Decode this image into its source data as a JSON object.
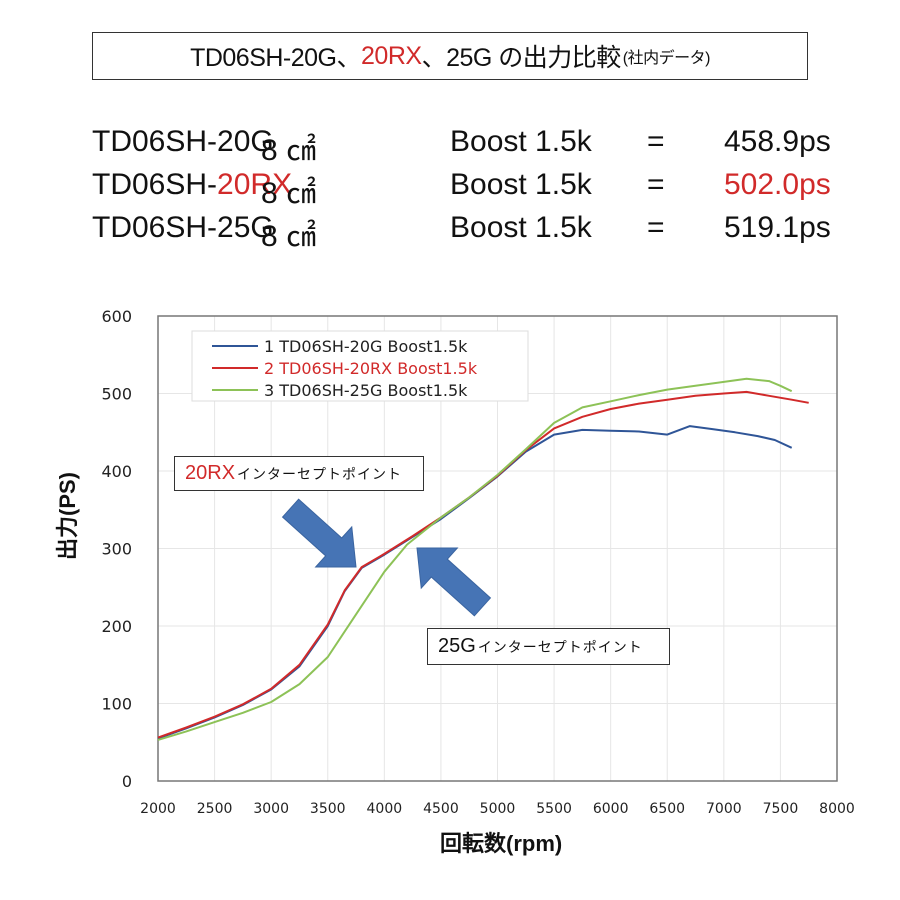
{
  "header": {
    "title_part1": "TD06SH-20G、",
    "title_part2_highlight": "20RX",
    "title_part3": "、25G の出力比較",
    "title_sub": "(社内データ)"
  },
  "specs": [
    {
      "model_prefix": "TD06SH-",
      "model_suffix": "20G",
      "highlight": false,
      "area": "8 ㎠",
      "boost": "Boost 1.5k",
      "eq": "=",
      "value": "458.9ps"
    },
    {
      "model_prefix": "TD06SH-",
      "model_suffix": "20RX",
      "highlight": true,
      "area": "8 ㎠",
      "boost": "Boost 1.5k",
      "eq": "=",
      "value": "502.0ps"
    },
    {
      "model_prefix": "TD06SH-",
      "model_suffix": "25G",
      "highlight": false,
      "area": "8 ㎠",
      "boost": "Boost 1.5k",
      "eq": "=",
      "value": "519.1ps"
    }
  ],
  "callouts": {
    "rx": {
      "highlight": "20RX",
      "text": "インターセプトポイント"
    },
    "g25": {
      "prefix": "25G",
      "text": "インターセプトポイント"
    }
  },
  "chart_data": {
    "type": "line",
    "title": "TD06SH-20G、20RX、25G の出力比較(社内データ)",
    "xlabel": "回転数(rpm)",
    "ylabel": "出力(PS)",
    "xlim": [
      2000,
      8000
    ],
    "ylim": [
      0,
      600
    ],
    "xticks": [
      2000,
      2500,
      3000,
      3500,
      4000,
      4500,
      5000,
      5500,
      6000,
      6500,
      7000,
      7500,
      8000
    ],
    "yticks": [
      0,
      100,
      200,
      300,
      400,
      500,
      600
    ],
    "grid": true,
    "legend_position": "upper-left",
    "series": [
      {
        "name": "1 TD06SH-20G Boost1.5k",
        "color": "#2f5597",
        "x": [
          2000,
          2250,
          2500,
          2750,
          3000,
          3250,
          3500,
          3650,
          3800,
          4000,
          4250,
          4500,
          4750,
          5000,
          5250,
          5500,
          5750,
          6000,
          6250,
          6500,
          6700,
          6900,
          7100,
          7300,
          7450,
          7600
        ],
        "y": [
          55,
          68,
          82,
          98,
          118,
          148,
          200,
          245,
          275,
          292,
          315,
          338,
          365,
          393,
          425,
          447,
          453,
          452,
          451,
          447,
          458,
          454,
          450,
          445,
          440,
          430
        ]
      },
      {
        "name": "2 TD06SH-20RX Boost1.5k",
        "color": "#d12a2a",
        "x": [
          2000,
          2250,
          2500,
          2750,
          3000,
          3250,
          3500,
          3650,
          3800,
          4000,
          4250,
          4500,
          4750,
          5000,
          5250,
          5500,
          5750,
          6000,
          6250,
          6500,
          6750,
          7000,
          7200,
          7400,
          7600,
          7750
        ],
        "y": [
          56,
          69,
          83,
          99,
          119,
          150,
          202,
          246,
          276,
          293,
          316,
          340,
          366,
          394,
          427,
          455,
          470,
          480,
          487,
          492,
          497,
          500,
          502,
          497,
          492,
          488
        ]
      },
      {
        "name": "3 TD06SH-25G Boost1.5k",
        "color": "#8dc257",
        "x": [
          2000,
          2250,
          2500,
          2750,
          3000,
          3250,
          3500,
          3750,
          4000,
          4200,
          4500,
          4750,
          5000,
          5250,
          5500,
          5750,
          6000,
          6250,
          6500,
          6750,
          7000,
          7200,
          7400,
          7500,
          7600
        ],
        "y": [
          53,
          64,
          76,
          88,
          102,
          125,
          160,
          215,
          270,
          305,
          340,
          366,
          395,
          428,
          462,
          482,
          490,
          498,
          505,
          510,
          515,
          519,
          516,
          510,
          503
        ]
      }
    ],
    "annotations": [
      {
        "text": "20RXインターセプトポイント",
        "arrow_points_to": [
          3800,
          278
        ]
      },
      {
        "text": "25Gインターセプトポイント",
        "arrow_points_to": [
          4150,
          312
        ]
      }
    ]
  },
  "axis": {
    "ylabel": "出力(PS)",
    "xlabel": "回転数(rpm)"
  }
}
